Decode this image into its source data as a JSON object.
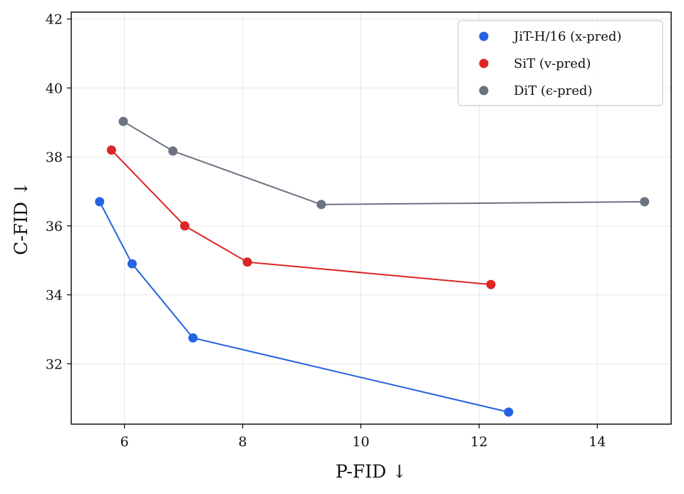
{
  "chart_data": {
    "type": "line",
    "xlabel": "P-FID ↓",
    "ylabel": "C-FID ↓",
    "xlim": [
      5.1,
      15.25
    ],
    "ylim": [
      30.25,
      42.2
    ],
    "xticks": [
      6,
      8,
      10,
      12,
      14
    ],
    "yticks": [
      32,
      34,
      36,
      38,
      40,
      42
    ],
    "grid": true,
    "legend_position": "top-right",
    "series": [
      {
        "name": "JiT-H/16 (x-pred)",
        "color": "#2563e0",
        "points": [
          [
            5.58,
            36.7
          ],
          [
            6.13,
            34.9
          ],
          [
            7.16,
            32.75
          ],
          [
            12.5,
            30.6
          ]
        ]
      },
      {
        "name": "SiT (v-pred)",
        "color": "#dc2626",
        "points": [
          [
            5.78,
            38.2
          ],
          [
            7.02,
            36.0
          ],
          [
            8.08,
            34.95
          ],
          [
            12.2,
            34.3
          ]
        ]
      },
      {
        "name": "DiT (ϵ-pred)",
        "color": "#6b7280",
        "points": [
          [
            5.98,
            39.03
          ],
          [
            6.82,
            38.17
          ],
          [
            9.33,
            36.62
          ],
          [
            14.8,
            36.7
          ]
        ]
      }
    ]
  }
}
